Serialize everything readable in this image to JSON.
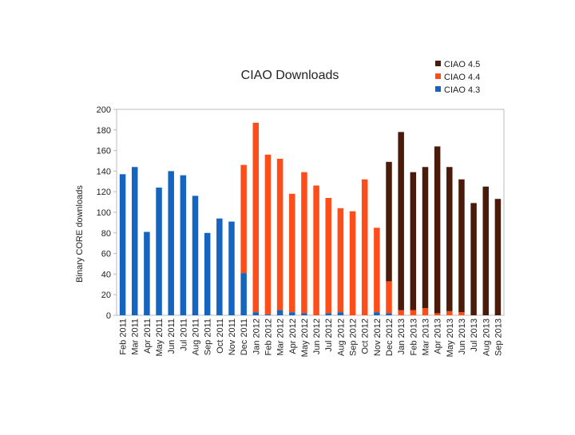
{
  "chart_data": {
    "type": "bar",
    "stacked": true,
    "title": "CIAO Downloads",
    "xlabel": "",
    "ylabel": "Binary CORE downloads",
    "ylim": [
      0,
      200
    ],
    "yticks": [
      0,
      20,
      40,
      60,
      80,
      100,
      120,
      140,
      160,
      180,
      200
    ],
    "grid": false,
    "legend_position": "top-right",
    "categories": [
      "Feb 2011",
      "Mar 2011",
      "Apr 2011",
      "May 2011",
      "Jun 2011",
      "Jul 2011",
      "Aug 2011",
      "Sep 2011",
      "Oct 2011",
      "Nov 2011",
      "Dec 2011",
      "Jan 2012",
      "Feb 2012",
      "Mar 2012",
      "Apr 2012",
      "May 2012",
      "Jun 2012",
      "Jul 2012",
      "Aug 2012",
      "Sep 2012",
      "Oct 2012",
      "Nov 2012",
      "Dec 2012",
      "Jan 2013",
      "Feb 2013",
      "Mar 2013",
      "Apr 2013",
      "May 2013",
      "Jun 2013",
      "Jul 2013",
      "Aug 2013",
      "Sep 2013"
    ],
    "series": [
      {
        "name": "CIAO 4.3",
        "color": "#1565c0",
        "values": [
          137,
          144,
          81,
          124,
          140,
          136,
          116,
          80,
          94,
          91,
          41,
          3,
          1,
          5,
          3,
          2,
          0,
          2,
          3,
          0,
          0,
          3,
          2,
          0,
          0,
          0,
          0,
          0,
          0,
          0,
          0,
          0
        ]
      },
      {
        "name": "CIAO 4.4",
        "color": "#ff4d1a",
        "values": [
          0,
          0,
          0,
          0,
          0,
          0,
          0,
          0,
          0,
          0,
          105,
          184,
          155,
          147,
          115,
          137,
          126,
          112,
          101,
          101,
          132,
          82,
          31,
          5,
          5,
          7,
          2,
          4,
          3,
          0,
          0,
          0
        ]
      },
      {
        "name": "CIAO 4.5",
        "color": "#4a1a0a",
        "values": [
          0,
          0,
          0,
          0,
          0,
          0,
          0,
          0,
          0,
          0,
          0,
          0,
          0,
          0,
          0,
          0,
          0,
          0,
          0,
          0,
          0,
          0,
          116,
          173,
          134,
          137,
          162,
          140,
          129,
          109,
          125,
          113
        ]
      }
    ]
  }
}
